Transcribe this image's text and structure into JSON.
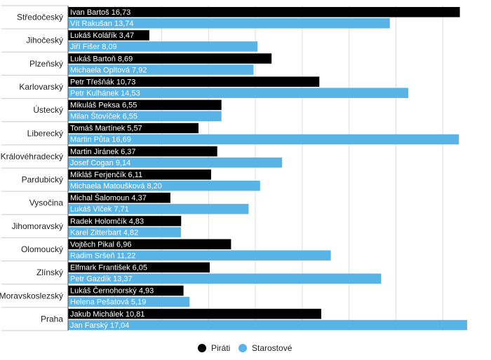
{
  "chart_data": {
    "type": "bar",
    "orientation": "horizontal",
    "grid": true,
    "legend_position": "bottom",
    "xlim": [
      0,
      17
    ],
    "categories": [
      "Středočeský",
      "Jihočeský",
      "Plzeňský",
      "Karlovarský",
      "Ústecký",
      "Liberecký",
      "Královéhradecký",
      "Pardubický",
      "Vysočina",
      "Jihomoravský",
      "Olomoucký",
      "Zlínský",
      "Moravskoslezský",
      "Praha"
    ],
    "series": [
      {
        "name": "Piráti",
        "color": "#000000",
        "label_color": "#ffffff",
        "values": [
          16.73,
          3.47,
          8.69,
          10.73,
          6.55,
          5.57,
          6.37,
          6.11,
          4.37,
          4.83,
          6.96,
          6.05,
          4.93,
          10.81
        ],
        "labels": [
          "Ivan Bartoš 16,73",
          "Lukáš Kolářík 3,47",
          "Lukáš Bartoň 8,69",
          "Petr Třešňák 10,73",
          "Mikuláš Peksa 6,55",
          "Tomáš Martínek 5,57",
          "Martin Jiránek 6,37",
          "Mikláš Ferjenčík 6,11",
          "Michal Šalomoun 4,37",
          "Radek Holomčík 4,83",
          "Vojtěch Pikal 6,96",
          "Elfmark František 6,05",
          "Lukáš Černohorský  4,93",
          "Jakub Michálek 10,81"
        ]
      },
      {
        "name": "Starostové",
        "color": "#58b4e6",
        "label_color": "#ffffff",
        "values": [
          13.74,
          8.09,
          7.92,
          14.53,
          6.55,
          16.69,
          9.14,
          8.2,
          7.71,
          4.82,
          11.22,
          13.37,
          5.19,
          17.04
        ],
        "labels": [
          "Vít Rakušan 13,74",
          "Jiří Fišer 8,09",
          "Michaela Opltová 7,92",
          "Petr Kulhánek 14,53",
          "Milan Štovíček 6,55",
          "Martin Půta 16,69",
          "Josef Cogan 9,14",
          "Michaela Matoušková 8,20",
          "Lukáš Vlček 7,71",
          "Karel Zitterbart 4,82",
          "Radim Sršeň 11,22",
          "Petr Gazdík 13,37",
          "Helena Pešatová 5,19",
          "Jan Farský 17,04"
        ]
      }
    ]
  }
}
